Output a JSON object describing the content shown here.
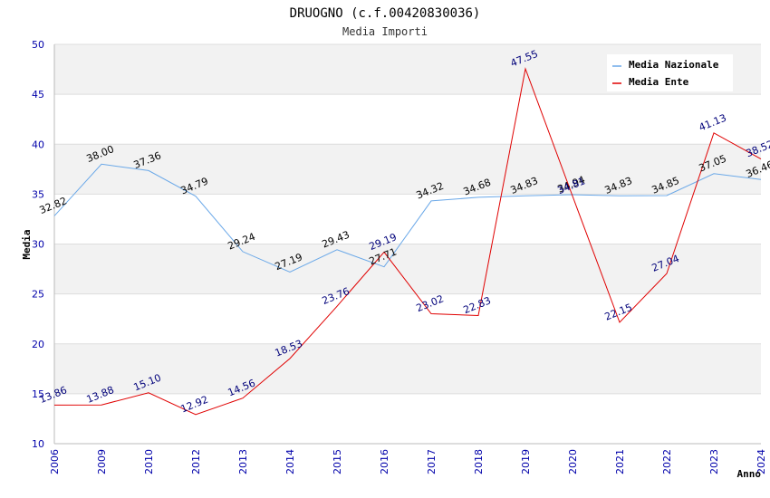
{
  "chart_data": {
    "type": "line",
    "title": "DRUOGNO (c.f.00420830036)",
    "subtitle": "Media Importi",
    "xlabel": "Anno",
    "ylabel": "Media",
    "ylim": [
      10,
      50
    ],
    "yticks": [
      "10",
      "15",
      "20",
      "25",
      "30",
      "35",
      "40",
      "45",
      "50"
    ],
    "categories": [
      "2006",
      "2009",
      "2010",
      "2012",
      "2013",
      "2014",
      "2015",
      "2016",
      "2017",
      "2018",
      "2019",
      "2020",
      "2021",
      "2022",
      "2023",
      "2024"
    ],
    "legend_position": "top-right",
    "series": [
      {
        "name": "Media Nazionale",
        "color": "#6aa8e8",
        "values": [
          32.82,
          38.0,
          37.36,
          34.79,
          29.24,
          27.19,
          29.43,
          27.71,
          34.32,
          34.68,
          34.83,
          34.94,
          34.83,
          34.85,
          37.05,
          36.46
        ],
        "labels": [
          "32.82",
          "38.00",
          "37.36",
          "34.79",
          "29.24",
          "27.19",
          "29.43",
          "27.71",
          "34.32",
          "34.68",
          "34.83",
          "34.94",
          "34.83",
          "34.85",
          "37.05",
          "36.46"
        ]
      },
      {
        "name": "Media Ente",
        "color": "#e00000",
        "values": [
          13.86,
          13.88,
          15.1,
          12.92,
          14.56,
          18.53,
          23.76,
          29.19,
          23.02,
          22.83,
          47.55,
          34.81,
          22.15,
          27.04,
          41.13,
          38.52
        ],
        "labels": [
          "13.86",
          "13.88",
          "15.10",
          "12.92",
          "14.56",
          "18.53",
          "23.76",
          "29.19",
          "23.02",
          "22.83",
          "47.55",
          "34.81",
          "22.15",
          "27.04",
          "41.13",
          "38.52"
        ]
      }
    ]
  }
}
